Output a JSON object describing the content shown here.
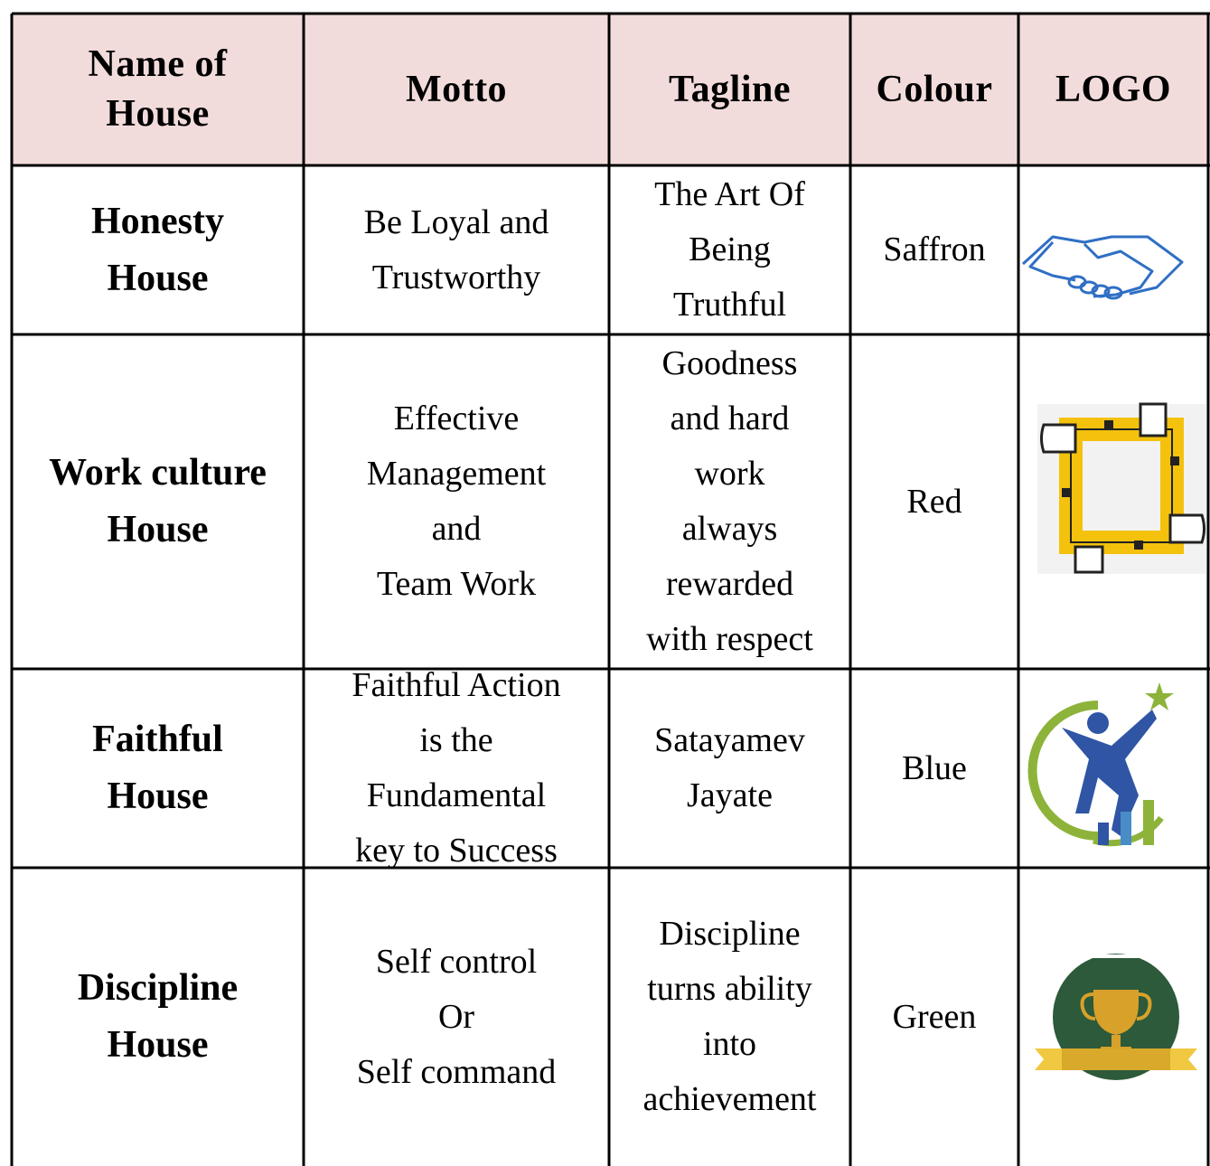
{
  "table": {
    "header": [
      [
        "Name of",
        "House"
      ],
      [
        "Motto"
      ],
      [
        "Tagline"
      ],
      [
        "Colour"
      ],
      [
        "LOGO"
      ]
    ],
    "rows": [
      [
        [
          "Honesty",
          "House"
        ],
        [
          "Be Loyal and",
          "Trustworthy"
        ],
        [
          "The Art Of",
          "Being",
          "Truthful"
        ],
        [
          "Saffron"
        ]
      ],
      [
        [
          "Work culture",
          "House"
        ],
        [
          "Effective",
          "Management",
          "and",
          "Team Work"
        ],
        [
          "Goodness",
          "and hard",
          "work",
          "always",
          "rewarded",
          "with respect"
        ],
        [
          "Red"
        ]
      ],
      [
        [
          "Faithful",
          "House"
        ],
        [
          "Faithful Action",
          "is the",
          "Fundamental",
          "key to Success"
        ],
        [
          "Satayamev",
          "Jayate"
        ],
        [
          "Blue"
        ]
      ],
      [
        [
          "Discipline",
          "House"
        ],
        [
          "Self control",
          "Or",
          "Self command"
        ],
        [
          "Discipline",
          "turns ability",
          "into",
          "achievement"
        ],
        [
          "Green"
        ]
      ]
    ]
  }
}
